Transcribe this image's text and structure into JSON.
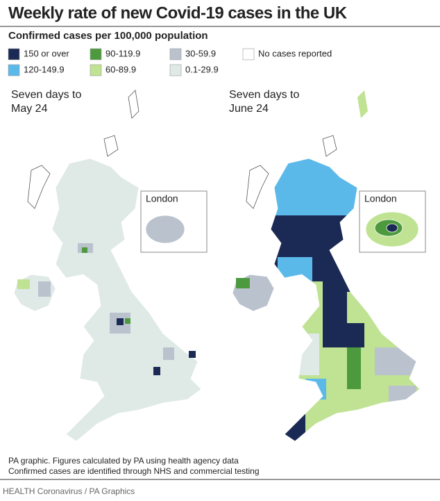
{
  "header": {
    "title": "Weekly rate of new Covid-19 cases in the UK",
    "subtitle": "Confirmed cases per 100,000 population"
  },
  "legend": [
    {
      "label": "150 or over",
      "color": "#1b2a55"
    },
    {
      "label": "120-149.9",
      "color": "#5bb9ea"
    },
    {
      "label": "90-119.9",
      "color": "#4d9a3e"
    },
    {
      "label": "60-89.9",
      "color": "#bfe293"
    },
    {
      "label": "30-59.9",
      "color": "#b9c2cd"
    },
    {
      "label": "0.1-29.9",
      "color": "#dfeae7"
    },
    {
      "label": "No cases reported",
      "color": "#ffffff"
    }
  ],
  "maps": [
    {
      "label_lines": [
        "Seven days to",
        "May 24"
      ],
      "inset_label": "London"
    },
    {
      "label_lines": [
        "Seven days to",
        "June 24"
      ],
      "inset_label": "London"
    }
  ],
  "footer": {
    "notes": [
      "PA graphic. Figures calculated by PA using health agency data",
      "Confirmed cases are identified through NHS and commercial testing"
    ],
    "credit": "HEALTH Coronavirus / PA Graphics"
  }
}
